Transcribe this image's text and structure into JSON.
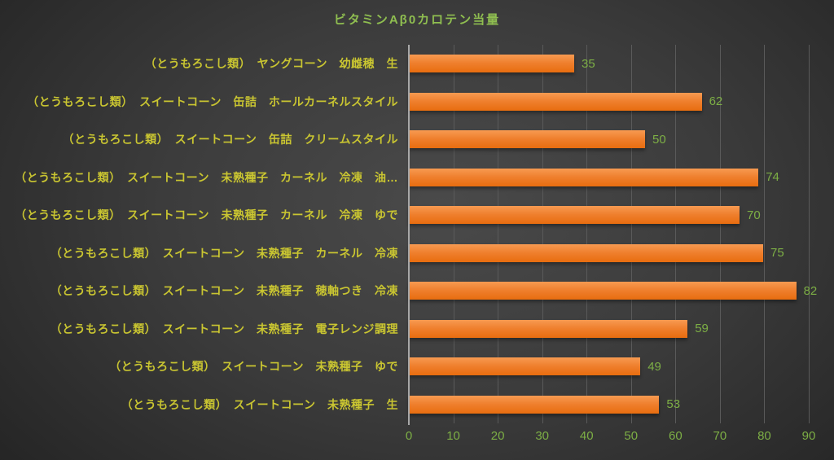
{
  "colors": {
    "background_center": "#4a4a4a",
    "background_edge": "#222222",
    "bar_top": "#f79a51",
    "bar_main": "#ef7f2d",
    "bar_bottom": "#e86d0f",
    "title_green": "#8fbe50",
    "value_green": "#7daf45",
    "category_yellow": "#c9c531",
    "gridline": "#5a5a5a",
    "axis_line": "#a8a8a8"
  },
  "chart_data": {
    "type": "bar",
    "orientation": "horizontal",
    "title": "ビタミンAβ0カロテン当量",
    "categories": [
      "（とうもろこし類）　ヤングコーン　幼雌穂　生",
      "（とうもろこし類）　スイートコーン　缶詰　ホールカーネルスタイル",
      "（とうもろこし類）　スイートコーン　缶詰　クリームスタイル",
      "（とうもろこし類）　スイートコーン　未熟種子　カーネル　冷凍　油…",
      "（とうもろこし類）　スイートコーン　未熟種子　カーネル　冷凍　ゆで",
      "（とうもろこし類）　スイートコーン　未熟種子　カーネル　冷凍",
      "（とうもろこし類）　スイートコーン　未熟種子　穂軸つき　冷凍",
      "（とうもろこし類）　スイートコーン　未熟種子　電子レンジ調理",
      "（とうもろこし類）　スイートコーン　未熟種子　ゆで",
      "（とうもろこし類）　スイートコーン　未熟種子　生"
    ],
    "values": [
      35,
      62,
      50,
      74,
      70,
      75,
      82,
      59,
      49,
      53
    ],
    "value_labels_shown": true,
    "xlabel": "",
    "ylabel": "",
    "xlim": [
      0,
      90
    ],
    "x_ticks": [
      0,
      10,
      20,
      30,
      40,
      50,
      60,
      70,
      80,
      90
    ],
    "grid": "vertical gridlines every 10 units",
    "legend": "none"
  }
}
